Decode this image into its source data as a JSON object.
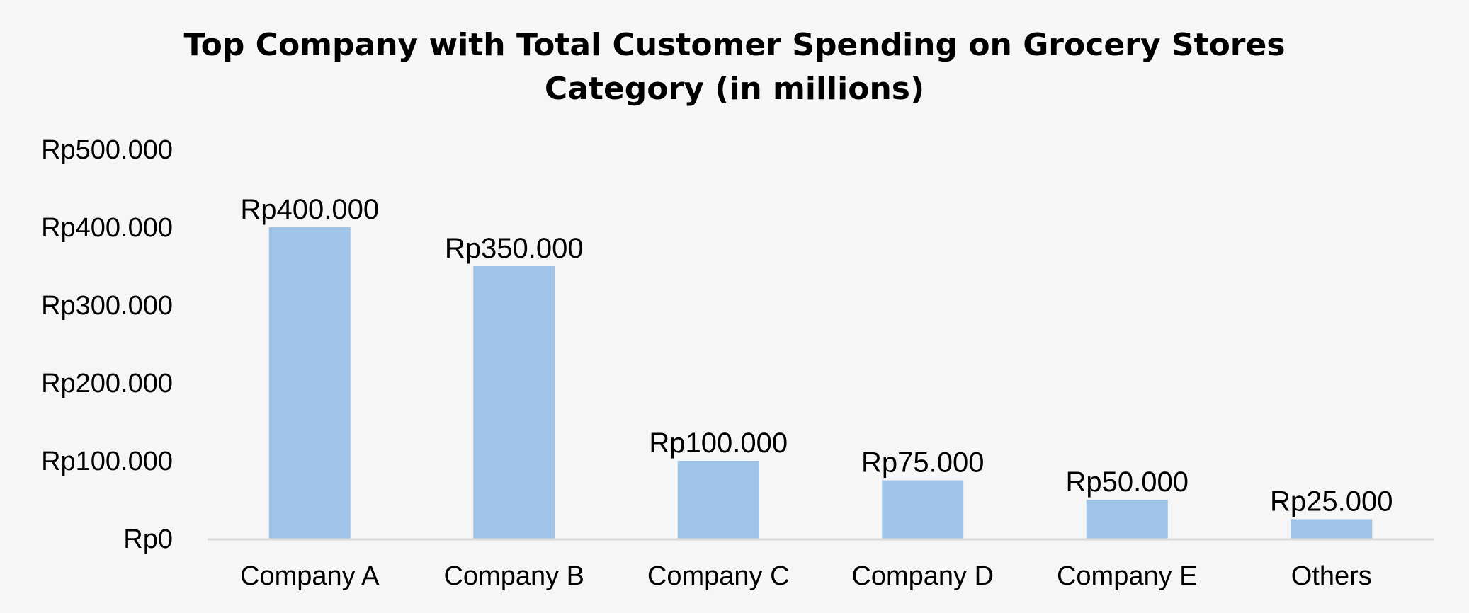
{
  "chart_data": {
    "type": "bar",
    "title_lines": [
      "Top Company with Total Customer Spending on Grocery Stores",
      "Category (in millions)"
    ],
    "categories": [
      "Company A",
      "Company B",
      "Company C",
      "Company D",
      "Company E",
      "Others"
    ],
    "values": [
      400000,
      350000,
      100000,
      75000,
      50000,
      25000
    ],
    "data_labels": [
      "Rp400.000",
      "Rp350.000",
      "Rp100.000",
      "Rp75.000",
      "Rp50.000",
      "Rp25.000"
    ],
    "y_ticks": [
      0,
      100000,
      200000,
      300000,
      400000,
      500000
    ],
    "y_tick_labels": [
      "Rp0",
      "Rp100.000",
      "Rp200.000",
      "Rp300.000",
      "Rp400.000",
      "Rp500.000"
    ],
    "ylim": [
      0,
      500000
    ],
    "grid": false,
    "legend": "none",
    "colors": {
      "bar": "#9fc4e7",
      "axis": "#d9d9d9",
      "background": "#f6f6f6"
    }
  }
}
